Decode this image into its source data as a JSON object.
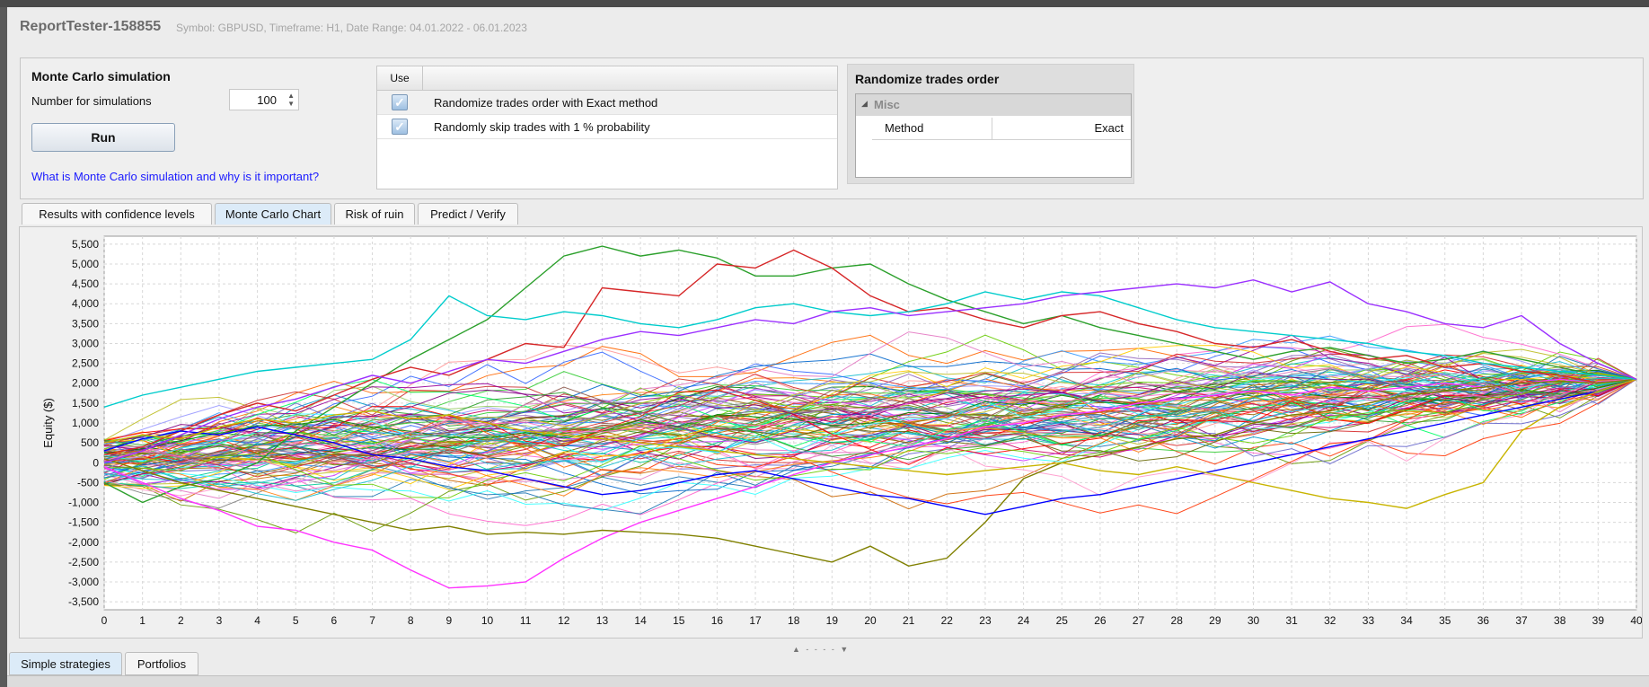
{
  "window": {
    "title": "ReportTester-158855",
    "subtitle": "Symbol: GBPUSD, Timeframe: H1, Date Range: 04.01.2022 - 06.01.2023"
  },
  "monte_carlo": {
    "title": "Monte Carlo simulation",
    "sim_label": "Number for simulations",
    "sim_value": "100",
    "run_label": "Run",
    "help_link": "What is Monte Carlo simulation and why is it important?"
  },
  "options": {
    "use_header": "Use",
    "rows": [
      {
        "checked": true,
        "label": "Randomize trades order with Exact method"
      },
      {
        "checked": true,
        "label": "Randomly skip trades with 1 % probability"
      }
    ]
  },
  "randomize": {
    "title": "Randomize trades order",
    "category": "Misc",
    "prop_name": "Method",
    "prop_value": "Exact"
  },
  "tabs": [
    {
      "label": "Results with confidence levels",
      "active": false
    },
    {
      "label": "Monte Carlo Chart",
      "active": true
    },
    {
      "label": "Risk of ruin",
      "active": false
    },
    {
      "label": "Predict / Verify",
      "active": false
    }
  ],
  "bottom_tabs": [
    {
      "label": "Simple strategies",
      "active": true
    },
    {
      "label": "Portfolios",
      "active": false
    }
  ],
  "chart_data": {
    "type": "line",
    "title": "",
    "ylabel": "Equity ($)",
    "xlabel": "",
    "xlim": [
      0,
      40
    ],
    "ylim": [
      -3700,
      5700
    ],
    "yticks": [
      5500,
      5000,
      4500,
      4000,
      3500,
      3000,
      2500,
      2000,
      1500,
      1000,
      500,
      0,
      -500,
      -1000,
      -1500,
      -2000,
      -2500,
      -3000,
      -3500
    ],
    "ytick_labels": [
      "5,500",
      "5,000",
      "4,500",
      "4,000",
      "3,500",
      "3,000",
      "2,500",
      "2,000",
      "1,500",
      "1,000",
      "500",
      "0",
      "-500",
      "-1,000",
      "-1,500",
      "-2,000",
      "-2,500",
      "-3,000",
      "-3,500"
    ],
    "xticks": [
      0,
      1,
      2,
      3,
      4,
      5,
      6,
      7,
      8,
      9,
      10,
      11,
      12,
      13,
      14,
      15,
      16,
      17,
      18,
      19,
      20,
      21,
      22,
      23,
      24,
      25,
      26,
      27,
      28,
      29,
      30,
      31,
      32,
      33,
      34,
      35,
      36,
      37,
      38,
      39,
      40
    ],
    "grid": true,
    "series_count": 100,
    "start_value": 0,
    "end_value": 2100,
    "highlighted_series": [
      {
        "name": "",
        "color": "#2ca02c",
        "values": [
          -500,
          -1000,
          -600,
          -400,
          0,
          800,
          1400,
          2000,
          2600,
          3100,
          3600,
          4400,
          5200,
          5450,
          5200,
          5350,
          5150,
          4700,
          4700,
          4900,
          5000,
          4500,
          4100,
          3800,
          3500,
          3700,
          3400,
          3200,
          3000,
          2800,
          2600,
          2800,
          2900,
          2700,
          2500,
          2600,
          2800,
          2600,
          2400,
          2200,
          2100
        ]
      },
      {
        "name": "",
        "color": "#d62728",
        "values": [
          200,
          400,
          800,
          1200,
          1500,
          1300,
          1700,
          2100,
          2400,
          2200,
          2600,
          3000,
          2900,
          4400,
          4300,
          4200,
          5000,
          4900,
          5350,
          4900,
          4200,
          3800,
          3900,
          3600,
          3400,
          3700,
          3800,
          3500,
          3300,
          3000,
          2900,
          3100,
          2800,
          2600,
          2700,
          2400,
          2500,
          2300,
          2200,
          2000,
          2100
        ]
      },
      {
        "name": "",
        "color": "#ff33ff",
        "values": [
          -100,
          -500,
          -900,
          -1200,
          -1600,
          -1700,
          -2000,
          -2200,
          -2700,
          -3150,
          -3100,
          -3000,
          -2400,
          -1900,
          -1500,
          -1200,
          -900,
          -600,
          -300,
          0,
          200,
          400,
          600,
          900,
          1000,
          1200,
          1300,
          1500,
          1600,
          1700,
          1800,
          1700,
          1900,
          1800,
          1900,
          2000,
          1900,
          2000,
          2100,
          2000,
          2100
        ]
      },
      {
        "name": "",
        "color": "#808000",
        "values": [
          100,
          -200,
          -500,
          -700,
          -900,
          -1100,
          -1300,
          -1500,
          -1700,
          -1600,
          -1800,
          -1750,
          -1800,
          -1700,
          -1750,
          -1800,
          -1900,
          -2100,
          -2300,
          -2500,
          -2100,
          -2600,
          -2400,
          -1500,
          -400,
          0,
          200,
          400,
          600,
          700,
          1000,
          1200,
          1300,
          1500,
          1700,
          1800,
          1900,
          2000,
          2050,
          2000,
          2100
        ]
      },
      {
        "name": "",
        "color": "#0000ff",
        "values": [
          300,
          600,
          800,
          700,
          900,
          700,
          500,
          200,
          100,
          -100,
          -200,
          -400,
          -600,
          -800,
          -700,
          -500,
          -300,
          -200,
          -400,
          -600,
          -800,
          -900,
          -1100,
          -1300,
          -1100,
          -900,
          -800,
          -600,
          -400,
          -200,
          0,
          200,
          400,
          600,
          800,
          1000,
          1200,
          1400,
          1600,
          1800,
          2100
        ]
      },
      {
        "name": "",
        "color": "#c8b400",
        "values": [
          500,
          700,
          600,
          900,
          1100,
          1000,
          1200,
          1300,
          1100,
          1200,
          1000,
          800,
          700,
          600,
          500,
          400,
          300,
          200,
          100,
          0,
          -100,
          -200,
          -300,
          -200,
          -100,
          0,
          -200,
          -300,
          -100,
          -300,
          -500,
          -700,
          -900,
          -1000,
          -1150,
          -800,
          -500,
          800,
          1400,
          1800,
          2100
        ]
      },
      {
        "name": "",
        "color": "#00cccc",
        "values": [
          1400,
          1700,
          1900,
          2100,
          2300,
          2400,
          2500,
          2600,
          3100,
          4200,
          3700,
          3600,
          3800,
          3700,
          3500,
          3400,
          3600,
          3900,
          4000,
          3800,
          3700,
          3800,
          4000,
          4300,
          4100,
          4300,
          4200,
          3900,
          3600,
          3400,
          3300,
          3200,
          3100,
          3000,
          2800,
          2700,
          2500,
          2400,
          2300,
          2200,
          2100
        ]
      },
      {
        "name": "",
        "color": "#9b30ff",
        "values": [
          0,
          300,
          700,
          1100,
          1400,
          1600,
          1900,
          2200,
          2000,
          2300,
          2600,
          2500,
          2800,
          3100,
          3300,
          3200,
          3400,
          3600,
          3500,
          3800,
          3900,
          3700,
          3800,
          3900,
          4000,
          4200,
          4300,
          4400,
          4500,
          4400,
          4600,
          4300,
          4550,
          4000,
          3800,
          3500,
          3400,
          3700,
          3000,
          2500,
          2100
        ]
      }
    ]
  }
}
